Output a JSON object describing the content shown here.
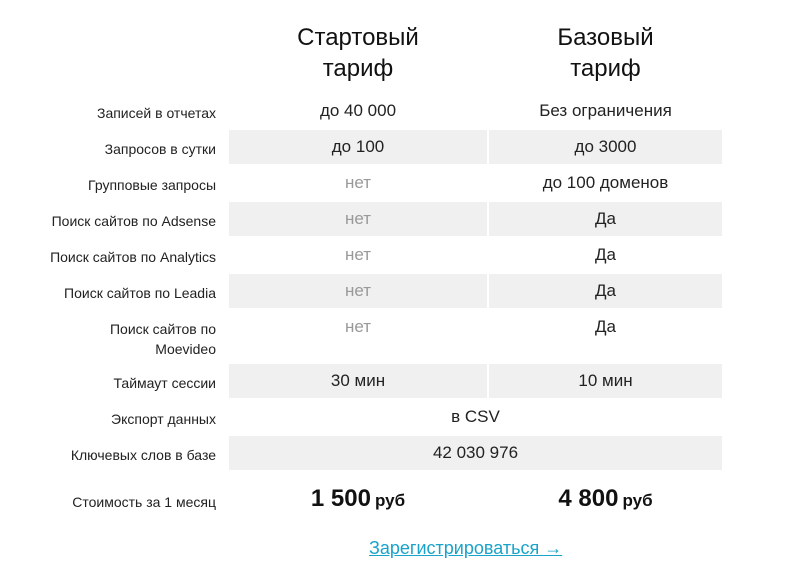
{
  "plans": [
    {
      "title_line1": "Стартовый",
      "title_line2": "тариф"
    },
    {
      "title_line1": "Базовый",
      "title_line2": "тариф"
    }
  ],
  "rows": [
    {
      "label": "Записей в отчетах",
      "start": "до 40 000",
      "base": "Без ограничения"
    },
    {
      "label": "Запросов в сутки",
      "start": "до 100",
      "base": "до 3000"
    },
    {
      "label": "Групповые запросы",
      "start": "нет",
      "base": "до 100 доменов"
    },
    {
      "label": "Поиск сайтов по Adsense",
      "start": "нет",
      "base": "Да"
    },
    {
      "label": "Поиск сайтов по Analytics",
      "start": "нет",
      "base": "Да"
    },
    {
      "label": "Поиск сайтов по Leadia",
      "start": "нет",
      "base": "Да"
    },
    {
      "label_line1": "Поиск сайтов по",
      "label_line2": "Moevideo",
      "start": "нет",
      "base": "Да"
    },
    {
      "label": "Таймаут сессии",
      "start": "30 мин",
      "base": "10 мин"
    },
    {
      "label": "Экспорт данных",
      "both": "в CSV"
    },
    {
      "label": "Ключевых слов в базе",
      "both": "42 030 976"
    }
  ],
  "price": {
    "label": "Стоимость за 1 месяц",
    "start": "1 500",
    "base": "4 800",
    "currency": "руб"
  },
  "register_link": "Зарегистрироваться →",
  "colors": {
    "shade": "#f0f0f0",
    "muted_text": "#999999",
    "link": "#1aa3c9"
  }
}
